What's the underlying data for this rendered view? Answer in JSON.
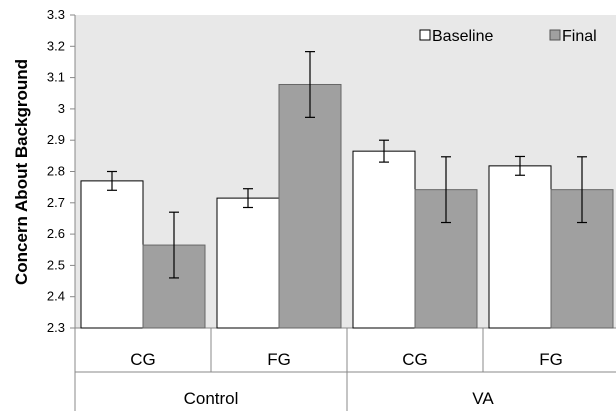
{
  "chart_data": {
    "type": "bar",
    "ylabel": "Concern About Background",
    "ylim": [
      2.3,
      3.3
    ],
    "yticks": [
      "2.3",
      "2.4",
      "2.5",
      "2.6",
      "2.7",
      "2.8",
      "2.9",
      "3",
      "3.1",
      "3.2",
      "3.3"
    ],
    "groups": [
      "Control",
      "VA"
    ],
    "categories": [
      "CG",
      "FG",
      "CG",
      "FG"
    ],
    "category_group": [
      0,
      0,
      1,
      1
    ],
    "series": [
      {
        "name": "Baseline",
        "values": [
          2.77,
          2.715,
          2.865,
          2.818
        ],
        "error": [
          0.03,
          0.03,
          0.035,
          0.03
        ],
        "color": "#ffffff"
      },
      {
        "name": "Final",
        "values": [
          2.565,
          3.078,
          2.742,
          2.742
        ],
        "error": [
          0.105,
          0.105,
          0.105,
          0.105
        ],
        "color": "#a0a0a0"
      }
    ],
    "legend_position": "top-right",
    "plot_background": "#e8e8e8",
    "grid": false
  }
}
